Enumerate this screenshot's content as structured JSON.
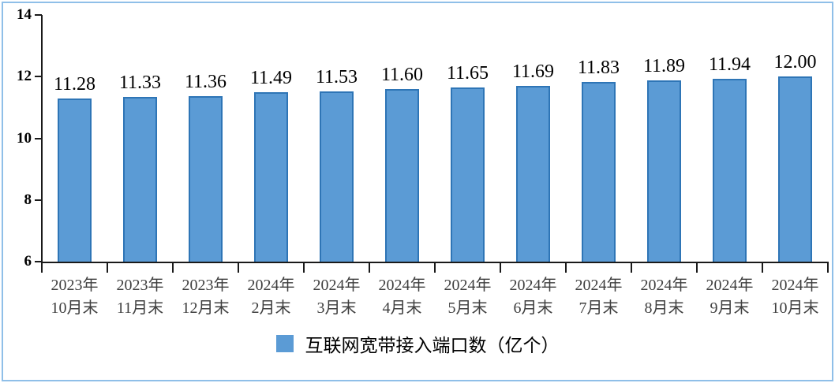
{
  "chart_data": {
    "type": "bar",
    "categories": [
      "2023年\n10月末",
      "2023年\n11月末",
      "2023年\n12月末",
      "2024年\n2月末",
      "2024年\n3月末",
      "2024年\n4月末",
      "2024年\n5月末",
      "2024年\n6月末",
      "2024年\n7月末",
      "2024年\n8月末",
      "2024年\n9月末",
      "2024年\n10月末"
    ],
    "values": [
      11.28,
      11.33,
      11.36,
      11.49,
      11.53,
      11.6,
      11.65,
      11.69,
      11.83,
      11.89,
      11.94,
      12.0
    ],
    "value_labels": [
      "11.28",
      "11.33",
      "11.36",
      "11.49",
      "11.53",
      "11.60",
      "11.65",
      "11.69",
      "11.83",
      "11.89",
      "11.94",
      "12.00"
    ],
    "series_name": "互联网宽带接入端口数（亿个）",
    "title": "",
    "xlabel": "",
    "ylabel": "",
    "ylim": [
      6,
      14
    ],
    "yticks": [
      6,
      8,
      10,
      12,
      14
    ],
    "grid": false,
    "legend_position": "bottom"
  },
  "legend": {
    "label": "互联网宽带接入端口数（亿个）"
  },
  "colors": {
    "bar_fill": "#5B9BD5",
    "bar_border": "#2E75B6",
    "frame_border": "#8FBFE8",
    "axis": "#1a1a1a",
    "value_label_text": "#000000",
    "ytick_text": "#000000",
    "xlabel_text": "#3f3f3f"
  }
}
